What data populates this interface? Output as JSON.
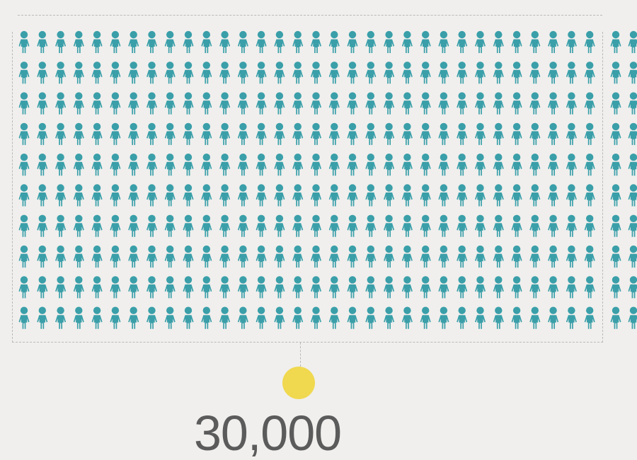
{
  "figure": {
    "total_label": "30,000",
    "icon": "person-icon",
    "icon_color": "#3a9fa9",
    "marker_color": "#f0d84f",
    "bracket_color": "#b9b9b9",
    "text_color": "#5b5b5b",
    "background": "#f0efed"
  },
  "grid": {
    "rows": 10,
    "columns_bracketed": 32,
    "columns_total_visible": 34
  }
}
